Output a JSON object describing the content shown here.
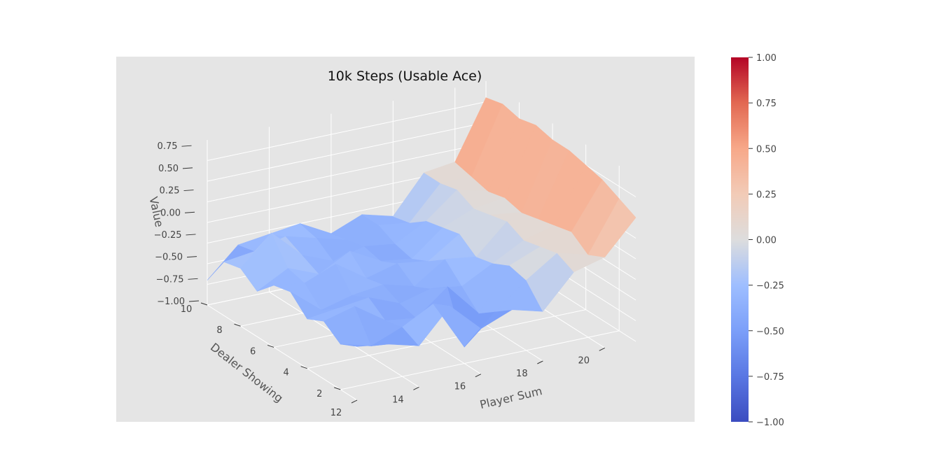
{
  "chart_data": {
    "type": "surface3d",
    "title": "10k Steps (Usable Ace)",
    "xlabel": "Player Sum",
    "ylabel": "Dealer Showing",
    "zlabel": "Value",
    "x": [
      12,
      13,
      14,
      15,
      16,
      17,
      18,
      19,
      20,
      21
    ],
    "y": [
      1,
      2,
      3,
      4,
      5,
      6,
      7,
      8,
      9,
      10
    ],
    "xticks": [
      "12",
      "14",
      "16",
      "18",
      "20"
    ],
    "yticks": [
      "2",
      "4",
      "6",
      "8",
      "10"
    ],
    "zticks": [
      "−1.00",
      "−0.75",
      "−0.50",
      "−0.25",
      "0.00",
      "0.25",
      "0.50",
      "0.75"
    ],
    "xlim": [
      12,
      21
    ],
    "ylim": [
      1,
      10
    ],
    "zlim": [
      -1,
      1
    ],
    "z": [
      [
        -0.35,
        -0.4,
        -0.5,
        -0.1,
        -0.45,
        -0.3,
        -0.4,
        0.0,
        0.1,
        0.5
      ],
      [
        -0.45,
        -0.55,
        -0.4,
        -0.2,
        -0.8,
        -0.45,
        -0.15,
        0.1,
        0.0,
        0.6
      ],
      [
        -0.3,
        -0.2,
        -0.45,
        -0.5,
        -0.2,
        -0.6,
        -0.1,
        0.05,
        0.15,
        0.7
      ],
      [
        -0.4,
        -0.35,
        -0.3,
        -0.45,
        -0.35,
        -0.4,
        -0.2,
        0.0,
        0.1,
        0.75
      ],
      [
        -0.2,
        -0.5,
        -0.4,
        -0.35,
        -0.45,
        -0.2,
        -0.25,
        0.1,
        0.05,
        0.8
      ],
      [
        -0.25,
        -0.3,
        -0.15,
        -0.4,
        -0.3,
        -0.35,
        -0.1,
        0.05,
        0.0,
        0.8
      ],
      [
        -0.45,
        -0.25,
        -0.4,
        -0.2,
        -0.4,
        -0.45,
        -0.15,
        0.0,
        0.05,
        0.85
      ],
      [
        -0.3,
        0.05,
        -0.3,
        -0.45,
        -0.35,
        -0.4,
        -0.2,
        0.1,
        0.0,
        0.8
      ],
      [
        -0.35,
        -0.3,
        -0.2,
        -0.3,
        -0.4,
        -0.3,
        -0.35,
        0.05,
        0.05,
        0.85
      ],
      [
        -0.7,
        -0.35,
        -0.3,
        -0.25,
        -0.45,
        -0.3,
        -0.4,
        0.05,
        0.1,
        0.8
      ]
    ],
    "colorbar": {
      "colormap": "coolwarm",
      "range": [
        -1,
        1
      ],
      "ticks": [
        "1.00",
        "0.75",
        "0.50",
        "0.25",
        "0.00",
        "−0.25",
        "−0.50",
        "−0.75",
        "−1.00"
      ]
    },
    "background_color": "#e5e5e5",
    "grid": true
  }
}
